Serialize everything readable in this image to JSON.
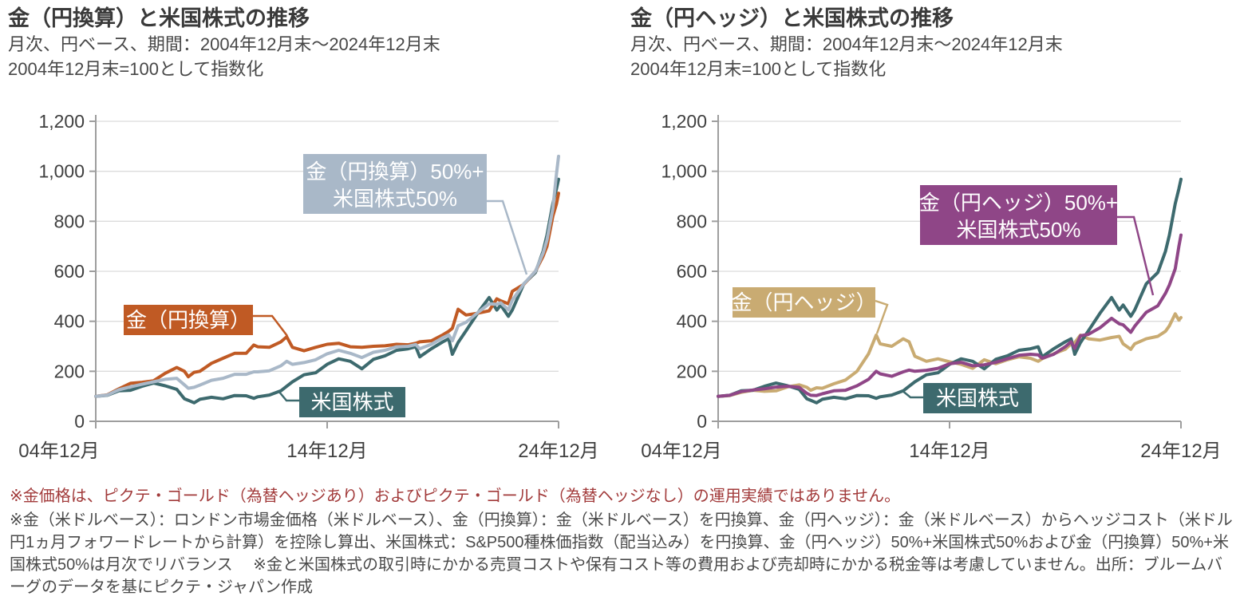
{
  "colors": {
    "grid": "#dcdcdc",
    "axis": "#9e9e9e",
    "tick_label": "#3f3f3f",
    "teal": "#3d6a6e",
    "orange": "#c05a24",
    "slate": "#a9b8c8",
    "tan": "#c9ab72",
    "purple": "#8f4687",
    "warning_red": "#a23b3b",
    "note_gray": "#4a4a4a"
  },
  "chart_data": [
    {
      "type": "line",
      "title": "金（円換算）と米国株式の推移",
      "subtitle_lines": [
        "月次、円ベース、期間：2004年12月末～2024年12月末",
        "2004年12月末=100として指数化"
      ],
      "ylim": [
        0,
        1200
      ],
      "yticks": [
        "0",
        "200",
        "400",
        "600",
        "800",
        "1,000",
        "1,200"
      ],
      "xtick_labels": [
        "04年12月",
        "14年12月",
        "24年12月"
      ],
      "grid": true,
      "legend_position": "on-chart-callouts",
      "x_years": [
        2004.92,
        2005.42,
        2005.92,
        2006.42,
        2006.92,
        2007.42,
        2007.92,
        2008.42,
        2008.75,
        2008.92,
        2009.17,
        2009.42,
        2009.92,
        2010.42,
        2010.92,
        2011.42,
        2011.75,
        2011.92,
        2012.42,
        2012.92,
        2013.17,
        2013.42,
        2013.92,
        2014.42,
        2014.92,
        2015.42,
        2015.92,
        2016.42,
        2016.92,
        2017.42,
        2017.92,
        2018.42,
        2018.75,
        2018.92,
        2019.42,
        2019.92,
        2020.17,
        2020.33,
        2020.58,
        2020.92,
        2021.42,
        2021.92,
        2022.25,
        2022.42,
        2022.75,
        2022.92,
        2023.42,
        2023.92,
        2024.25,
        2024.42,
        2024.67,
        2024.83,
        2024.92
      ],
      "series": [
        {
          "id": "us_equity",
          "name": "米国株式",
          "color": "#3d6a6e",
          "values": [
            100,
            104,
            122,
            124,
            140,
            153,
            142,
            128,
            90,
            84,
            74,
            88,
            96,
            90,
            103,
            102,
            92,
            98,
            105,
            122,
            140,
            158,
            186,
            194,
            228,
            250,
            240,
            210,
            248,
            262,
            284,
            290,
            298,
            258,
            290,
            318,
            330,
            268,
            315,
            362,
            432,
            495,
            445,
            465,
            420,
            445,
            550,
            595,
            680,
            745,
            870,
            930,
            968
          ]
        },
        {
          "id": "gold_jpy",
          "name": "金（円換算）",
          "color": "#c05a24",
          "values": [
            100,
            106,
            130,
            152,
            156,
            162,
            192,
            215,
            200,
            178,
            196,
            200,
            232,
            252,
            272,
            272,
            305,
            298,
            296,
            318,
            338,
            296,
            282,
            296,
            308,
            312,
            298,
            296,
            300,
            302,
            308,
            306,
            312,
            318,
            322,
            346,
            360,
            372,
            448,
            425,
            432,
            442,
            490,
            482,
            470,
            520,
            548,
            600,
            660,
            700,
            820,
            870,
            912
          ]
        },
        {
          "id": "mix_gold_fx_us50",
          "name": "金（円換算）50%+米国株式50%",
          "color": "#a9b8c8",
          "values": [
            100,
            105,
            126,
            138,
            148,
            158,
            168,
            172,
            146,
            132,
            136,
            145,
            164,
            172,
            188,
            188,
            198,
            198,
            202,
            222,
            240,
            228,
            235,
            246,
            270,
            284,
            272,
            255,
            276,
            284,
            298,
            300,
            307,
            290,
            308,
            334,
            346,
            322,
            382,
            396,
            434,
            470,
            468,
            474,
            446,
            484,
            550,
            600,
            672,
            725,
            850,
            990,
            1060
          ]
        }
      ],
      "annotations": [
        {
          "lines": [
            "金（円換算）50%+",
            "米国株式50%"
          ],
          "color": "#a9b8c8"
        },
        {
          "lines": [
            "金（円換算）"
          ],
          "color": "#c05a24"
        },
        {
          "lines": [
            "米国株式"
          ],
          "color": "#3d6a6e"
        }
      ]
    },
    {
      "type": "line",
      "title": "金（円ヘッジ）と米国株式の推移",
      "subtitle_lines": [
        "月次、円ベース、期間：2004年12月末～2024年12月末",
        "2004年12月末=100として指数化"
      ],
      "ylim": [
        0,
        1200
      ],
      "yticks": [
        "0",
        "200",
        "400",
        "600",
        "800",
        "1,000",
        "1,200"
      ],
      "xtick_labels": [
        "04年12月",
        "14年12月",
        "24年12月"
      ],
      "grid": true,
      "legend_position": "on-chart-callouts",
      "x_years": [
        2004.92,
        2005.42,
        2005.92,
        2006.42,
        2006.92,
        2007.42,
        2007.92,
        2008.42,
        2008.75,
        2008.92,
        2009.17,
        2009.42,
        2009.92,
        2010.42,
        2010.92,
        2011.42,
        2011.75,
        2011.92,
        2012.42,
        2012.92,
        2013.17,
        2013.42,
        2013.92,
        2014.42,
        2014.92,
        2015.42,
        2015.92,
        2016.42,
        2016.92,
        2017.42,
        2017.92,
        2018.42,
        2018.75,
        2018.92,
        2019.42,
        2019.92,
        2020.17,
        2020.33,
        2020.58,
        2020.92,
        2021.42,
        2021.92,
        2022.25,
        2022.42,
        2022.75,
        2022.92,
        2023.42,
        2023.92,
        2024.25,
        2024.42,
        2024.67,
        2024.83,
        2024.92
      ],
      "series": [
        {
          "id": "gold_hedged",
          "name": "金（円ヘッジ）",
          "color": "#c9ab72",
          "values": [
            100,
            103,
            116,
            124,
            120,
            122,
            138,
            146,
            136,
            124,
            134,
            132,
            150,
            165,
            200,
            270,
            345,
            310,
            300,
            330,
            318,
            260,
            240,
            250,
            238,
            228,
            212,
            246,
            230,
            246,
            258,
            252,
            240,
            250,
            270,
            288,
            310,
            315,
            345,
            330,
            325,
            335,
            340,
            310,
            288,
            310,
            330,
            340,
            360,
            382,
            430,
            405,
            415
          ]
        },
        {
          "id": "us_equity",
          "name": "米国株式",
          "color": "#3d6a6e",
          "values": [
            100,
            104,
            122,
            124,
            140,
            153,
            142,
            128,
            90,
            84,
            74,
            88,
            96,
            90,
            103,
            102,
            92,
            98,
            105,
            122,
            140,
            158,
            186,
            194,
            228,
            250,
            240,
            210,
            248,
            262,
            284,
            290,
            298,
            258,
            290,
            318,
            330,
            268,
            315,
            362,
            432,
            495,
            445,
            465,
            420,
            445,
            550,
            595,
            680,
            745,
            870,
            930,
            968
          ]
        },
        {
          "id": "mix_gold_hedged_us50",
          "name": "金（円ヘッジ）50%+米国株式50%",
          "color": "#8f4687",
          "values": [
            100,
            104,
            119,
            125,
            130,
            137,
            140,
            136,
            112,
            104,
            103,
            110,
            122,
            124,
            142,
            168,
            200,
            190,
            180,
            198,
            205,
            200,
            204,
            212,
            230,
            236,
            222,
            226,
            236,
            250,
            264,
            268,
            266,
            252,
            268,
            298,
            318,
            292,
            342,
            348,
            374,
            412,
            390,
            386,
            356,
            380,
            436,
            462,
            512,
            545,
            610,
            700,
            745
          ]
        }
      ],
      "annotations": [
        {
          "lines": [
            "金（円ヘッジ）50%+",
            "米国株式50%"
          ],
          "color": "#8f4687"
        },
        {
          "lines": [
            "金（円ヘッジ）"
          ],
          "color": "#c9ab72"
        },
        {
          "lines": [
            "米国株式"
          ],
          "color": "#3d6a6e"
        }
      ]
    }
  ],
  "footnote": {
    "warning": "※金価格は、ピクテ・ゴールド（為替ヘッジあり）およびピクテ・ゴールド（為替ヘッジなし）の運用実績ではありません。",
    "notes": "※金（米ドルベース）：ロンドン市場金価格（米ドルベース）、金（円換算）：金（米ドルベース）を円換算、金（円ヘッジ）：金（米ドルベース）からヘッジコスト（米ドル円1ヵ月フォワードレートから計算）を控除し算出、米国株式：S&P500種株価指数（配当込み）を円換算、金（円ヘッジ）50%+米国株式50%および金（円換算）50%+米国株式50%は月次でリバランス　 ※金と米国株式の取引時にかかる売買コストや保有コスト等の費用および売却時にかかる税金等は考慮していません。出所：ブルームバーグのデータを基にピクテ・ジャパン作成"
  }
}
